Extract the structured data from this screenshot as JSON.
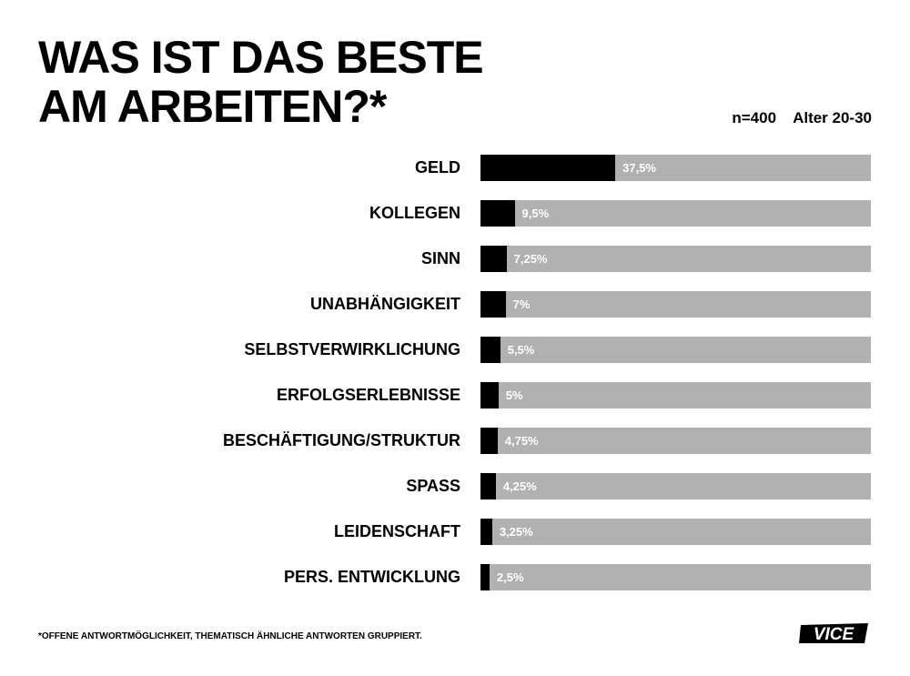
{
  "title_lines": [
    "WAS IST DAS BESTE",
    "AM ARBEITEN?*"
  ],
  "meta": {
    "sample": "n=400",
    "age": "Alter 20-30"
  },
  "footnote": "*OFFENE ANTWORTMÖGLICHKEIT, THEMATISCH ÄHNLICHE ANTWORTEN GRUPPIERT.",
  "logo": "VICE",
  "colors": {
    "fill": "#000000",
    "track": "#b1b1b1",
    "label_on_bar": "#ffffff"
  },
  "chart_data": {
    "type": "bar",
    "orientation": "horizontal",
    "title": "WAS IST DAS BESTE AM ARBEITEN?*",
    "subtitle": "n=400 Alter 20-30",
    "xlabel": "",
    "ylabel": "",
    "xlim": [
      0,
      108.6
    ],
    "grid": false,
    "categories": [
      "GELD",
      "KOLLEGEN",
      "SINN",
      "UNABHÄNGIGKEIT",
      "SELBSTVERWIRKLICHUNG",
      "ERFOLGSERLEBNISSE",
      "BESCHÄFTIGUNG/STRUKTUR",
      "SPASS",
      "LEIDENSCHAFT",
      "PERS. ENTWICKLUNG"
    ],
    "values": [
      37.5,
      9.5,
      7.25,
      7,
      5.5,
      5,
      4.75,
      4.25,
      3.25,
      2.5
    ],
    "value_labels": [
      "37,5%",
      "9,5%",
      "7,25%",
      "7%",
      "5,5%",
      "5%",
      "4,75%",
      "4,25%",
      "3,25%",
      "2,5%"
    ],
    "unit": "%"
  }
}
